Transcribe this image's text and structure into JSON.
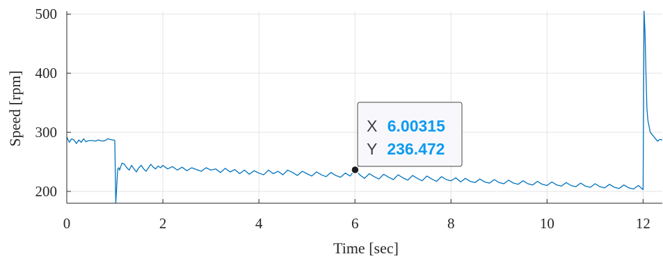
{
  "chart_data": {
    "type": "line",
    "xlabel": "Time [sec]",
    "ylabel": "Speed [rpm]",
    "xlim": [
      0,
      12.4
    ],
    "ylim": [
      180,
      505
    ],
    "xticks": [
      0,
      2,
      4,
      6,
      8,
      10,
      12
    ],
    "yticks": [
      200,
      300,
      400,
      500
    ],
    "grid": true,
    "line_color": "#0072bd",
    "series": [
      {
        "values": {
          "x": [
            0,
            0.05,
            0.1,
            0.15,
            0.2,
            0.25,
            0.3,
            0.35,
            0.4,
            0.45,
            0.5,
            0.55,
            0.6,
            0.65,
            0.7,
            0.75,
            0.8,
            0.85,
            0.9,
            0.95,
            0.98,
            1.0,
            1.02,
            1.06,
            1.08,
            1.1,
            1.12,
            1.15,
            1.2,
            1.25,
            1.3,
            1.35,
            1.4,
            1.45,
            1.5,
            1.55,
            1.6,
            1.65,
            1.7,
            1.75,
            1.8,
            1.85,
            1.9,
            1.95,
            2.0,
            2.1,
            2.2,
            2.3,
            2.4,
            2.5,
            2.6,
            2.7,
            2.8,
            2.9,
            3.0,
            3.1,
            3.2,
            3.3,
            3.4,
            3.5,
            3.6,
            3.7,
            3.8,
            3.9,
            4.0,
            4.1,
            4.2,
            4.3,
            4.4,
            4.5,
            4.6,
            4.7,
            4.8,
            4.9,
            5.0,
            5.1,
            5.2,
            5.3,
            5.4,
            5.5,
            5.6,
            5.7,
            5.8,
            5.9,
            6.0,
            6.1,
            6.2,
            6.3,
            6.4,
            6.5,
            6.6,
            6.7,
            6.8,
            6.9,
            7.0,
            7.1,
            7.2,
            7.3,
            7.4,
            7.5,
            7.6,
            7.7,
            7.8,
            7.9,
            8.0,
            8.1,
            8.2,
            8.3,
            8.4,
            8.5,
            8.6,
            8.7,
            8.8,
            8.9,
            9.0,
            9.1,
            9.2,
            9.3,
            9.4,
            9.5,
            9.6,
            9.7,
            9.8,
            9.9,
            10.0,
            10.1,
            10.2,
            10.3,
            10.4,
            10.5,
            10.6,
            10.7,
            10.8,
            10.9,
            11.0,
            11.1,
            11.2,
            11.3,
            11.4,
            11.5,
            11.6,
            11.7,
            11.8,
            11.9,
            12.0,
            12.02,
            12.04,
            12.06,
            12.08,
            12.1,
            12.15,
            12.2,
            12.25,
            12.3,
            12.35,
            12.4
          ],
          "y": [
            292,
            283,
            289,
            287,
            281,
            287,
            283,
            289,
            284,
            286,
            286,
            286,
            285,
            287,
            286,
            285,
            286,
            289,
            288,
            287,
            287,
            286,
            180,
            238,
            240,
            236,
            241,
            248,
            246,
            240,
            236,
            244,
            238,
            233,
            240,
            244,
            238,
            234,
            240,
            246,
            241,
            238,
            243,
            240,
            244,
            238,
            242,
            236,
            241,
            235,
            240,
            237,
            234,
            240,
            236,
            238,
            232,
            239,
            233,
            237,
            230,
            236,
            229,
            235,
            231,
            228,
            236,
            230,
            234,
            228,
            236,
            232,
            227,
            234,
            230,
            226,
            233,
            228,
            225,
            232,
            227,
            224,
            231,
            226,
            236.472,
            228,
            222,
            230,
            225,
            221,
            229,
            224,
            220,
            228,
            223,
            219,
            227,
            222,
            218,
            226,
            221,
            217,
            225,
            220,
            218,
            223,
            216,
            222,
            217,
            215,
            221,
            216,
            214,
            220,
            215,
            213,
            219,
            214,
            212,
            218,
            213,
            211,
            217,
            212,
            210,
            216,
            211,
            209,
            215,
            210,
            208,
            214,
            209,
            207,
            213,
            208,
            206,
            212,
            207,
            205,
            211,
            206,
            204,
            210,
            203,
            505,
            470,
            400,
            340,
            320,
            300,
            295,
            290,
            285,
            288,
            287
          ]
        }
      }
    ],
    "datatip": {
      "x_key": "X",
      "y_key": "Y",
      "x_value": "6.00315",
      "y_value": "236.472",
      "point": [
        6.00315,
        236.472
      ]
    }
  }
}
